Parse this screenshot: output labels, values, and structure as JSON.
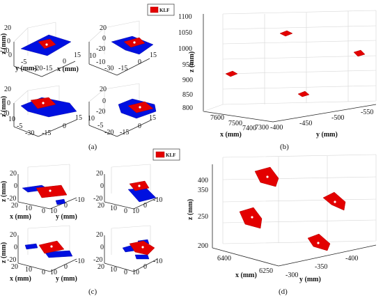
{
  "legend_label": "KLF",
  "colors": {
    "klf": "#e30000",
    "surface": "#0010e0"
  },
  "panels": [
    {
      "id": "a",
      "label": "(a)"
    },
    {
      "id": "b",
      "label": "(b)"
    },
    {
      "id": "c",
      "label": "(c)"
    },
    {
      "id": "d",
      "label": "(d)"
    }
  ],
  "chart_data": [
    {
      "panel": "a",
      "type": "scatter",
      "note": "four 3-D subplots",
      "subplots": [
        {
          "z_label": "z (mm)",
          "y_label": "y (mm)",
          "x_label": "x (mm)",
          "z_ticks": [
            "20",
            "0",
            "-20"
          ],
          "y_ticks": [
            "0",
            "-5",
            "-20"
          ],
          "x_ticks": [
            "-15",
            "0",
            "15"
          ]
        },
        {
          "z_ticks": [
            "20",
            "0",
            "-20"
          ],
          "y_ticks": [
            "10",
            "-10",
            "-30"
          ],
          "x_ticks": [
            "-15",
            "0",
            "15"
          ]
        },
        {
          "z_ticks": [
            "20",
            "0",
            "-20"
          ],
          "y_ticks": [
            "10",
            "-5",
            "-30"
          ],
          "x_ticks": [
            "-15",
            "0",
            "15"
          ]
        },
        {
          "z_ticks": [
            "20",
            "0",
            "-20"
          ],
          "y_ticks": [
            "10",
            "-5",
            "-20"
          ],
          "x_ticks": [
            "-15",
            "0",
            "15"
          ]
        }
      ]
    },
    {
      "panel": "b",
      "type": "scatter",
      "z_label": "z (mm)",
      "x_label": "x (mm)",
      "y_label": "y (mm)",
      "z_ticks": [
        "1100",
        "1050",
        "1000",
        "950",
        "900",
        "850",
        "800"
      ],
      "x_ticks": [
        "7600",
        "7500",
        "7400",
        "7300"
      ],
      "y_ticks": [
        "-400",
        "-450",
        "-500",
        "-550"
      ],
      "zlim": [
        800,
        1100
      ]
    },
    {
      "panel": "c",
      "type": "scatter",
      "note": "four 3-D subplots",
      "subplots": [
        {
          "z_label": "z (mm)",
          "x_label": "x (mm)",
          "y_label": "y (mm)",
          "z_ticks": [
            "20",
            "0",
            "-20"
          ],
          "x_ticks": [
            "20",
            "10",
            "0"
          ],
          "y_ticks": [
            "10",
            "0",
            "-10"
          ]
        },
        {
          "z_ticks": [
            "20",
            "0",
            "-20"
          ],
          "x_ticks": [
            "20",
            "10",
            "0"
          ],
          "y_ticks": [
            "10",
            "0",
            "-10"
          ]
        },
        {
          "z_ticks": [
            "20",
            "0",
            "-20"
          ],
          "x_ticks": [
            "20",
            "10",
            "0"
          ],
          "y_ticks": [
            "10",
            "0",
            "-10"
          ]
        },
        {
          "z_ticks": [
            "20",
            "0",
            "-20"
          ],
          "x_ticks": [
            "20",
            "10",
            "0"
          ],
          "y_ticks": [
            "10",
            "0",
            "-10"
          ]
        }
      ]
    },
    {
      "panel": "d",
      "type": "scatter",
      "z_label": "z (mm)",
      "x_label": "x (mm)",
      "y_label": "y (mm)",
      "z_ticks": [
        "400",
        "350",
        "250",
        "200"
      ],
      "x_ticks": [
        "6400",
        "6250"
      ],
      "y_ticks": [
        "-300",
        "-350",
        "-400"
      ]
    }
  ]
}
